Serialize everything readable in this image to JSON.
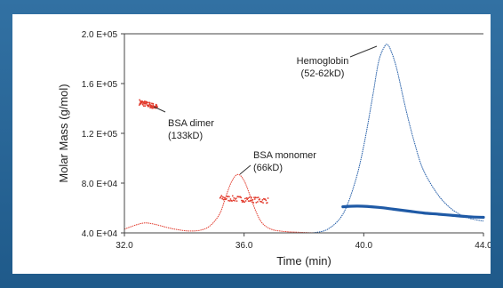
{
  "chart_data": {
    "type": "scatter",
    "title": "",
    "xlabel": "Time (min)",
    "ylabel": "Molar Mass (g/mol)",
    "xlim": [
      32.0,
      44.0
    ],
    "ylim": [
      40000,
      200000
    ],
    "x_ticks": [
      "32.0",
      "36.0",
      "40.0",
      "44.0"
    ],
    "y_ticks": [
      "4.0 E+04",
      "8.0 E+04",
      "1.2 E+05",
      "1.6 E+05",
      "2.0 E+05"
    ],
    "grid": false,
    "colors": {
      "bsa": "#e23a2c",
      "hemoglobin": "#1f5aa6"
    },
    "annotations": [
      {
        "id": "hemoglobin",
        "line1": "Hemoglobin",
        "line2": "(52-62kD)"
      },
      {
        "id": "bsa-dimer",
        "line1": "BSA dimer",
        "line2": "(133kD)"
      },
      {
        "id": "bsa-monomer",
        "line1": "BSA monomer",
        "line2": "(66kD)"
      }
    ],
    "series": [
      {
        "id": "bsa-signal",
        "style": "thin-line",
        "color_key": "bsa",
        "x": [
          32.0,
          32.4,
          32.7,
          33.0,
          33.4,
          33.8,
          34.2,
          34.6,
          34.9,
          35.2,
          35.4,
          35.6,
          35.8,
          36.0,
          36.2,
          36.4,
          36.6,
          36.9,
          37.3,
          37.8,
          38.4,
          39.0,
          40.0,
          41.0,
          42.0
        ],
        "y": [
          43000,
          46500,
          48000,
          47000,
          44500,
          42500,
          41500,
          42500,
          46500,
          56000,
          70000,
          82000,
          87000,
          82000,
          70000,
          57000,
          48000,
          43000,
          41200,
          40500,
          40000,
          40000,
          40000,
          40000,
          40000
        ]
      },
      {
        "id": "bsa-dimer-molar-mass",
        "style": "dots",
        "color_key": "bsa",
        "x": [
          32.5,
          33.1
        ],
        "y": [
          145000,
          141000
        ]
      },
      {
        "id": "bsa-monomer-molar-mass",
        "style": "dots",
        "color_key": "bsa",
        "x": [
          35.2,
          36.8
        ],
        "y": [
          68000,
          66000
        ]
      },
      {
        "id": "hemoglobin-signal",
        "style": "thin-line",
        "color_key": "hemoglobin",
        "x": [
          38.3,
          38.8,
          39.3,
          39.7,
          40.0,
          40.3,
          40.5,
          40.7,
          40.8,
          40.9,
          41.1,
          41.4,
          41.7,
          42.0,
          42.5,
          43.0,
          43.5,
          44.0
        ],
        "y": [
          40000,
          43000,
          55000,
          80000,
          110000,
          150000,
          178000,
          190000,
          191000,
          187000,
          172000,
          140000,
          112000,
          90000,
          70000,
          58000,
          52000,
          49500
        ]
      },
      {
        "id": "hemoglobin-molar-mass",
        "style": "thick-line",
        "color_key": "hemoglobin",
        "x": [
          39.3,
          39.8,
          40.5,
          41.0,
          41.5,
          42.0,
          42.5,
          43.0,
          43.5,
          44.0
        ],
        "y": [
          61000,
          61500,
          60500,
          59000,
          57500,
          56000,
          55000,
          54000,
          53000,
          52500
        ]
      }
    ]
  }
}
